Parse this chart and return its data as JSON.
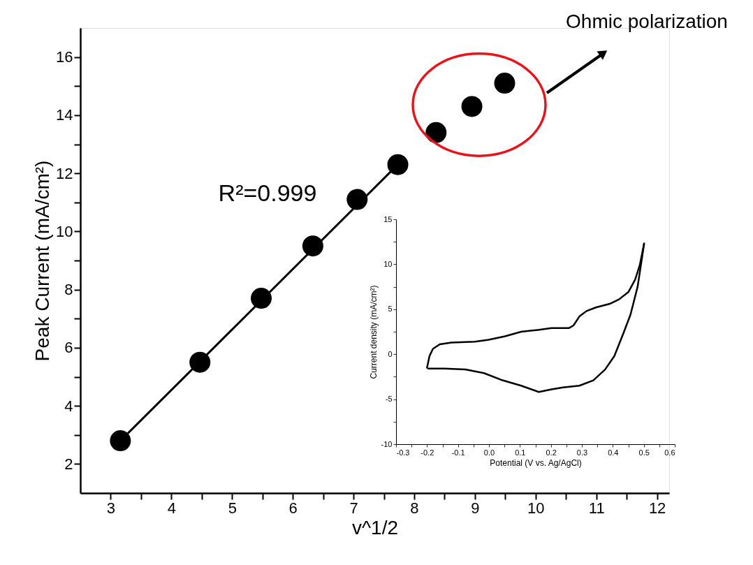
{
  "chart_data": [
    {
      "type": "scatter",
      "xlabel": "v^1/2",
      "ylabel": "Peak Current (mA/cm²)",
      "xlim": [
        2.5,
        12.2
      ],
      "ylim": [
        1,
        17
      ],
      "xticks": [
        3,
        {
          "value": 3.5,
          "label": null
        },
        4,
        {
          "value": 4.5,
          "label": null
        },
        5,
        {
          "value": 5.5,
          "label": null
        },
        6,
        {
          "value": 6.5,
          "label": null
        },
        7,
        {
          "value": 7.5,
          "label": null
        },
        8,
        {
          "value": 8.5,
          "label": null
        },
        9,
        {
          "value": 9.5,
          "label": null
        },
        10,
        {
          "value": 10.5,
          "label": null
        },
        11,
        {
          "value": 11.5,
          "label": null
        },
        12
      ],
      "yticks": [
        2,
        {
          "value": 3,
          "label": null
        },
        4,
        {
          "value": 5,
          "label": null
        },
        6,
        {
          "value": 7,
          "label": null
        },
        8,
        {
          "value": 9,
          "label": null
        },
        10,
        {
          "value": 11,
          "label": null
        },
        12,
        {
          "value": 13,
          "label": null
        },
        14,
        {
          "value": 15,
          "label": null
        },
        16
      ],
      "series": [
        {
          "color": "#000000",
          "marker": "circle",
          "x": [
            3.16,
            4.47,
            5.48,
            6.33,
            7.06,
            7.73,
            8.36,
            8.95,
            9.49
          ],
          "values": [
            2.8,
            5.5,
            7.7,
            9.5,
            11.1,
            12.3,
            13.4,
            14.3,
            15.1
          ]
        },
        {
          "type": "line",
          "color": "#000000",
          "x": [
            3.16,
            7.73
          ],
          "values": [
            2.8,
            12.3
          ]
        }
      ],
      "annotations": [
        "R²=0.999",
        "Ohmic polarization"
      ]
    },
    {
      "type": "line",
      "xlabel": "Potential (V vs. Ag/AgCl)",
      "ylabel": "Current density (mA/cm²)",
      "xlim": [
        -0.3,
        0.6
      ],
      "ylim": [
        -10,
        15
      ],
      "xticks": [
        -0.3,
        {
          "value": -0.25,
          "label": null
        },
        -0.2,
        {
          "value": -0.15,
          "label": null
        },
        -0.1,
        {
          "value": -0.05,
          "label": null
        },
        {
          "value": 0,
          "label": "0.0"
        },
        {
          "value": 0.05,
          "label": null
        },
        0.1,
        {
          "value": 0.15,
          "label": null
        },
        0.2,
        {
          "value": 0.25,
          "label": null
        },
        0.3,
        {
          "value": 0.35,
          "label": null
        },
        0.4,
        {
          "value": 0.45,
          "label": null
        },
        0.5,
        {
          "value": 0.55,
          "label": null
        },
        0.6
      ],
      "yticks": [
        -10,
        {
          "value": -7.5,
          "label": null
        },
        -5,
        {
          "value": -2.5,
          "label": null
        },
        0,
        {
          "value": 2.5,
          "label": null
        },
        5,
        {
          "value": 7.5,
          "label": null
        },
        10,
        {
          "value": 12.5,
          "label": null
        },
        15
      ],
      "series": [
        {
          "color": "#000000",
          "x": [
            -0.2,
            -0.192,
            -0.181,
            -0.159,
            -0.121,
            -0.046,
            -0.001,
            0.052,
            0.104,
            0.157,
            0.202,
            0.258,
            0.273,
            0.292,
            0.315,
            0.345,
            0.39,
            0.42,
            0.45,
            0.472,
            0.487,
            0.501
          ],
          "values": [
            -1.5,
            -0.2,
            0.6,
            1.1,
            1.3,
            1.4,
            1.6,
            2.0,
            2.5,
            2.7,
            2.9,
            2.9,
            3.2,
            4.2,
            4.8,
            5.2,
            5.6,
            6.1,
            6.9,
            8.3,
            9.9,
            12.3
          ]
        },
        {
          "color": "#000000",
          "x": [
            0.501,
            0.495,
            0.48,
            0.457,
            0.435,
            0.405,
            0.375,
            0.337,
            0.292,
            0.239,
            0.202,
            0.161,
            0.104,
            0.044,
            -0.016,
            -0.076,
            -0.144,
            -0.196
          ],
          "values": [
            12.3,
            10.9,
            7.5,
            4.4,
            2.4,
            -0.2,
            -1.7,
            -2.9,
            -3.5,
            -3.7,
            -3.9,
            -4.2,
            -3.5,
            -2.9,
            -2.1,
            -1.7,
            -1.6,
            -1.6
          ]
        }
      ]
    }
  ]
}
